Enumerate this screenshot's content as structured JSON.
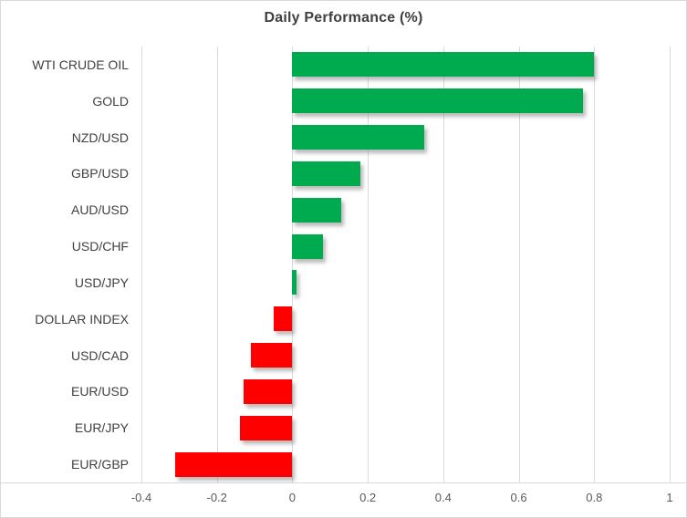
{
  "chart_data": {
    "type": "bar",
    "orientation": "horizontal",
    "title": "Daily Performance (%)",
    "categories": [
      "WTI CRUDE OIL",
      "GOLD",
      "NZD/USD",
      "GBP/USD",
      "AUD/USD",
      "USD/CHF",
      "USD/JPY",
      "DOLLAR INDEX",
      "USD/CAD",
      "EUR/USD",
      "EUR/JPY",
      "EUR/GBP"
    ],
    "values": [
      0.8,
      0.77,
      0.35,
      0.18,
      0.13,
      0.08,
      0.01,
      -0.05,
      -0.11,
      -0.13,
      -0.14,
      -0.31
    ],
    "xlim": [
      -0.4,
      1.0
    ],
    "x_ticks": [
      -0.4,
      -0.2,
      0,
      0.2,
      0.4,
      0.6,
      0.8,
      1
    ],
    "x_tick_labels": [
      "-0.4",
      "-0.2",
      "0",
      "0.2",
      "0.4",
      "0.6",
      "0.8",
      "1"
    ],
    "grid": "vertical-only",
    "legend": "none",
    "colors": {
      "positive_bar": "#00AB50",
      "negative_bar": "#FF0000",
      "gridline": "#D9D9D9",
      "border": "#D9D9D9",
      "title_text": "#404040",
      "category_text": "#404040",
      "tick_text": "#595959"
    }
  }
}
